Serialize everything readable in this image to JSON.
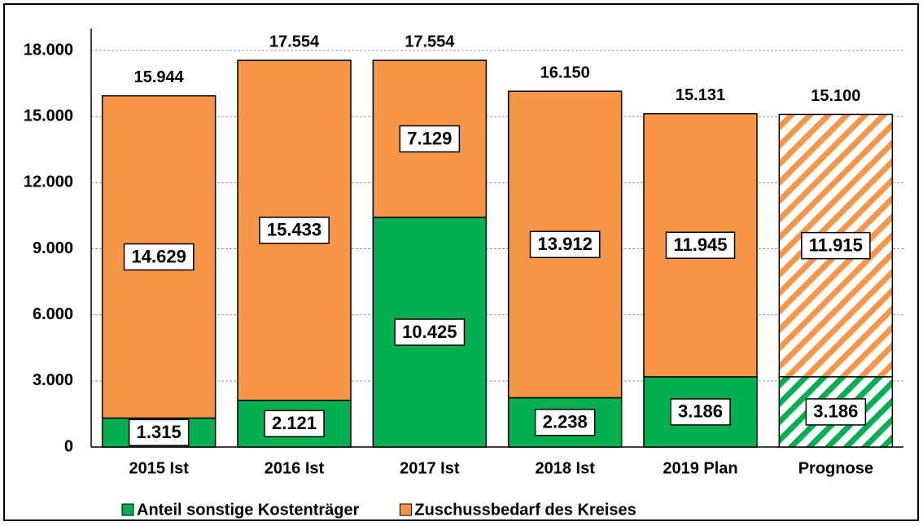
{
  "chart_data": {
    "type": "stacked_bar",
    "categories": [
      "2015 Ist",
      "2016 Ist",
      "2017 Ist",
      "2018 Ist",
      "2019 Plan",
      "Prognose"
    ],
    "series": [
      {
        "name": "Anteil sonstige Kostenträger",
        "color": "#00b050",
        "values": [
          1315,
          2121,
          10425,
          2238,
          3186,
          3186
        ],
        "value_labels": [
          "1.315",
          "2.121",
          "10.425",
          "2.238",
          "3.186",
          "3.186"
        ]
      },
      {
        "name": "Zuschussbedarf des Kreises",
        "color": "#f79646",
        "values": [
          14629,
          15433,
          7129,
          13912,
          11945,
          11915
        ],
        "value_labels": [
          "14.629",
          "15.433",
          "7.129",
          "13.912",
          "11.945",
          "11.915"
        ]
      }
    ],
    "totals": {
      "values": [
        15944,
        17554,
        17554,
        16150,
        15131,
        15100
      ],
      "value_labels": [
        "15.944",
        "17.554",
        "17.554",
        "16.150",
        "15.131",
        "15.100"
      ]
    },
    "hatch": [
      false,
      false,
      false,
      false,
      false,
      true
    ],
    "ylim": [
      0,
      19000
    ],
    "yticks": [
      0,
      {
        "value": 3000,
        "label": "3.000"
      },
      {
        "value": 6000,
        "label": "6.000"
      },
      {
        "value": 9000,
        "label": "9.000"
      },
      {
        "value": 12000,
        "label": "12.000"
      },
      {
        "value": 15000,
        "label": "15.000"
      },
      {
        "value": 18000,
        "label": "18.000"
      }
    ],
    "grid": true,
    "legend": "bottom"
  }
}
